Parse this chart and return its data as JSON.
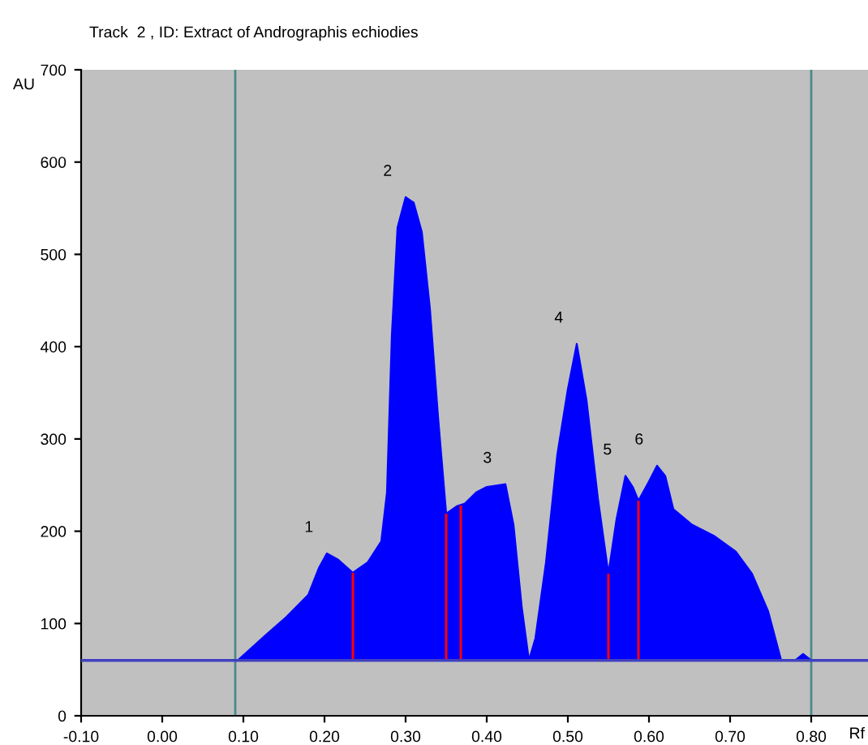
{
  "chart_data": {
    "type": "area",
    "title": "Track  2 , ID: Extract of Andrographis echiodies",
    "ylabel": "AU",
    "xlabel": "Rf",
    "xlim": [
      -0.1,
      0.87
    ],
    "ylim": [
      0,
      700
    ],
    "xticks": [
      {
        "value": -0.1,
        "label": "-0.10"
      },
      {
        "value": 0,
        "label": "0.00"
      },
      {
        "value": 0.1,
        "label": "0.10"
      },
      {
        "value": 0.2,
        "label": "0.20"
      },
      {
        "value": 0.3,
        "label": "0.30"
      },
      {
        "value": 0.4,
        "label": "0.40"
      },
      {
        "value": 0.5,
        "label": "0.50"
      },
      {
        "value": 0.6,
        "label": "0.60"
      },
      {
        "value": 0.7,
        "label": "0.70"
      },
      {
        "value": 0.8,
        "label": "0.80"
      }
    ],
    "yticks": [
      0,
      100,
      200,
      300,
      400,
      500,
      600,
      700
    ],
    "grid": false,
    "legend": false,
    "series": [
      {
        "color": "#0000ff",
        "x": [
          0.093,
          0.127,
          0.153,
          0.18,
          0.193,
          0.203,
          0.217,
          0.235,
          0.253,
          0.27,
          0.277,
          0.283,
          0.29,
          0.3,
          0.31,
          0.32,
          0.33,
          0.34,
          0.35,
          0.363,
          0.373,
          0.387,
          0.4,
          0.423,
          0.433,
          0.443,
          0.452,
          0.46,
          0.473,
          0.487,
          0.5,
          0.511,
          0.523,
          0.537,
          0.55,
          0.56,
          0.571,
          0.58,
          0.587,
          0.6,
          0.61,
          0.62,
          0.63,
          0.653,
          0.68,
          0.707,
          0.727,
          0.747,
          0.763,
          0.78,
          0.79,
          0.8
        ],
        "values": [
          60,
          87,
          107,
          131,
          160,
          176,
          169,
          155,
          166,
          189,
          242,
          412,
          529,
          562,
          556,
          524,
          441,
          324,
          219,
          227,
          230,
          242,
          248,
          251,
          207,
          119,
          60,
          84,
          166,
          283,
          354,
          403,
          342,
          236,
          154,
          213,
          260,
          248,
          233,
          254,
          271,
          260,
          224,
          207,
          195,
          178,
          154,
          113,
          60,
          60,
          67,
          60
        ]
      },
      {
        "type": "bar",
        "color": "#ff0000",
        "base": [
          60,
          60,
          60,
          60,
          60
        ],
        "x": [
          0.235,
          0.35,
          0.368,
          0.55,
          0.587
        ],
        "values": [
          95,
          159,
          168,
          94,
          173
        ]
      }
    ],
    "ref_lines": [
      {
        "axis": "y",
        "value": 60,
        "color": "#4040c0"
      },
      {
        "axis": "x",
        "value": 0.09,
        "color": "#4a8a8a"
      },
      {
        "axis": "x",
        "value": 0.8,
        "color": "#4a8a8a"
      }
    ],
    "annotations": [
      {
        "text": "1",
        "x": 0.203,
        "y": 176
      },
      {
        "text": "2",
        "x": 0.3,
        "y": 562
      },
      {
        "text": "3",
        "x": 0.423,
        "y": 251
      },
      {
        "text": "4",
        "x": 0.511,
        "y": 403
      },
      {
        "text": "5",
        "x": 0.571,
        "y": 260
      },
      {
        "text": "6",
        "x": 0.61,
        "y": 271
      }
    ]
  }
}
